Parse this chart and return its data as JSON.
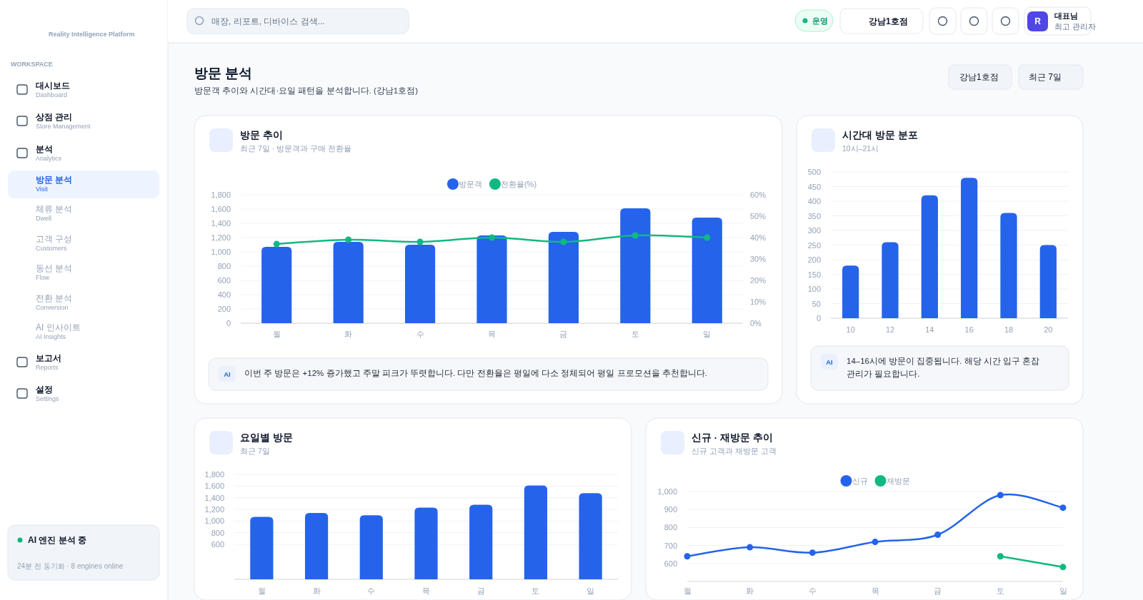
{
  "chart_data": [
    {
      "type": "other",
      "title": "방문 분석",
      "subtitle": "방문객 추이와 시간대·요일 패턴을 분석합니다. (강남1호점)",
      "annotations": [
        "Reality Intelligence Platform",
        "WORKSPACE",
        "대시보드",
        "Dashboard",
        "상점 관리",
        "Store Management",
        "분석",
        "Analytics",
        "방문 분석",
        "Visit",
        "체류 분석",
        "Dwell",
        "고객 구성",
        "Customers",
        "동선 분석",
        "Flow",
        "전환 분석",
        "Conversion",
        "AI 인사이트",
        "AI Insights",
        "보고서",
        "Reports",
        "설정",
        "Settings",
        "AI 엔진 분석 중",
        "24분 전 동기화 · 8 engines online",
        "매장, 리포트, 디바이스 검색...",
        "운영",
        "강남1호점",
        "R",
        "대표님",
        "최고 관리자",
        "강남1호점",
        "최근 7일"
      ]
    },
    {
      "type": "bar",
      "title": "방문 추이",
      "subtitle": "최근 7일 · 방문객과 구매 전환율",
      "categories": [
        "월",
        "화",
        "수",
        "목",
        "금",
        "토",
        "일"
      ],
      "series": [
        {
          "name": "방문객",
          "color": "#2563eb",
          "values": [
            1070,
            1140,
            1100,
            1230,
            1280,
            1610,
            1480
          ]
        },
        {
          "name": "전환율(%)",
          "type": "line",
          "axis": "y2",
          "color": "#10b981",
          "values": [
            37,
            39,
            38,
            40,
            38,
            41,
            40
          ]
        }
      ],
      "ylim": [
        0,
        1800
      ],
      "yticks": [
        0,
        200,
        400,
        600,
        800,
        {
          "value": 1000,
          "label": "1,000"
        },
        {
          "value": 1200,
          "label": "1,200"
        },
        {
          "value": 1400,
          "label": "1,400"
        },
        {
          "value": 1600,
          "label": "1,600"
        },
        {
          "value": 1800,
          "label": "1,800"
        }
      ],
      "y2lim": [
        0,
        60
      ],
      "y2ticks": [
        {
          "value": 0,
          "label": "0%"
        },
        {
          "value": 10,
          "label": "10%"
        },
        {
          "value": 20,
          "label": "20%"
        },
        {
          "value": 30,
          "label": "30%"
        },
        {
          "value": 40,
          "label": "40%"
        },
        {
          "value": 50,
          "label": "50%"
        },
        {
          "value": 60,
          "label": "60%"
        }
      ],
      "grid": "y",
      "legend": "top",
      "marker": "circle",
      "annotations": [
        "AI",
        "이번 주 방문은 +12% 증가했고 주말 피크가 뚜렷합니다. 다만 전환율은 평일에 다소 정체되어 평일 프로모션을 추천합니다."
      ]
    },
    {
      "type": "bar",
      "title": "시간대 방문 분포",
      "subtitle": "10시–21시",
      "categories": [
        "10",
        "12",
        "14",
        "16",
        "18",
        "20"
      ],
      "color": "#2563eb",
      "values": [
        180,
        260,
        420,
        480,
        360,
        250
      ],
      "ylim": [
        0,
        500
      ],
      "yticks": [
        0,
        50,
        100,
        150,
        200,
        250,
        300,
        350,
        400,
        450,
        500
      ],
      "grid": "y",
      "annotations": [
        "AI",
        "14–16시에 방문이 집중됩니다. 해당 시간 입구 혼잡 관리가 필요합니다."
      ]
    },
    {
      "type": "bar",
      "title": "요일별 방문",
      "subtitle": "최근 7일",
      "categories": [
        "월",
        "화",
        "수",
        "목",
        "금",
        "토",
        "일"
      ],
      "color": "#2563eb",
      "values": [
        1070,
        1140,
        1100,
        1230,
        1280,
        1610,
        1480
      ],
      "ylim": [
        0,
        1800
      ],
      "yticks": [
        {
          "value": 600,
          "label": "600"
        },
        {
          "value": 800,
          "label": "800"
        },
        {
          "value": 1000,
          "label": "1,000"
        },
        {
          "value": 1200,
          "label": "1,200"
        },
        {
          "value": 1400,
          "label": "1,400"
        },
        {
          "value": 1600,
          "label": "1,600"
        },
        {
          "value": 1800,
          "label": "1,800"
        }
      ],
      "grid": "y"
    },
    {
      "type": "line",
      "title": "신규 · 재방문 추이",
      "subtitle": "신규 고객과 재방문 고객",
      "categories": [
        "월",
        "화",
        "수",
        "목",
        "금",
        "토",
        "일"
      ],
      "series": [
        {
          "name": "신규",
          "color": "#2563eb",
          "values": [
            640,
            690,
            660,
            720,
            760,
            980,
            910
          ]
        },
        {
          "name": "재방문",
          "color": "#10b981",
          "values": [
            null,
            null,
            null,
            null,
            null,
            640,
            580
          ]
        }
      ],
      "ylim": [
        500,
        1000
      ],
      "yticks": [
        600,
        700,
        800,
        900,
        {
          "value": 1000,
          "label": "1,000"
        }
      ],
      "grid": "y",
      "legend": "top",
      "marker": "circle"
    }
  ]
}
